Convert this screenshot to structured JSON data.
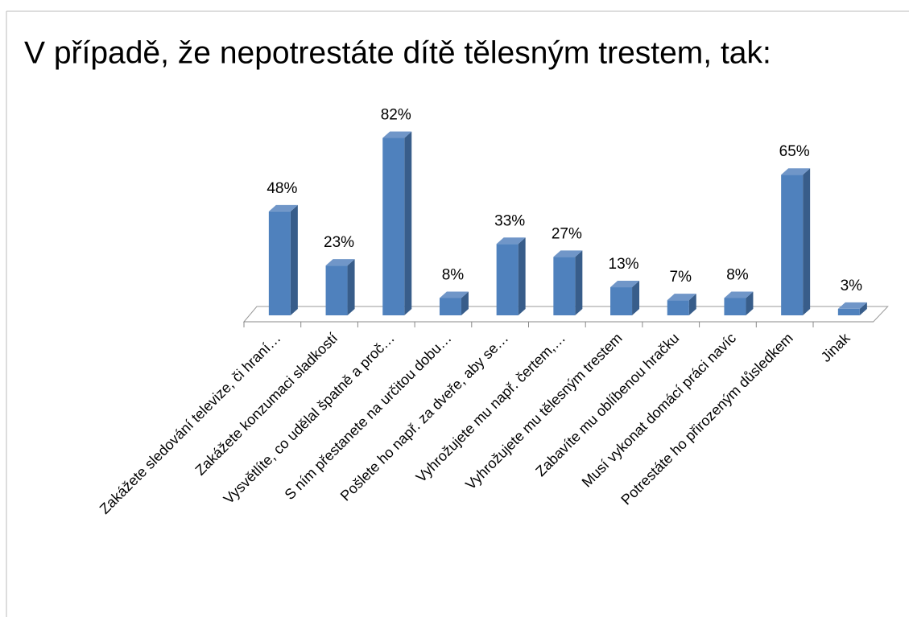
{
  "chart_data": {
    "type": "bar3d",
    "title": "V případě, že nepotrestáte dítě tělesným trestem, tak:",
    "categories": [
      "Zakážete sledování televize, či hraní…",
      "Zakážete konzumaci sladkostí",
      "Vysvětlíte, co udělal špatně a proč…",
      "S ním přestanete na určitou dobu…",
      "Pošlete ho např. za dveře, aby se…",
      "Vyhrožujete mu např. čertem,…",
      "Vyhrožujete mu tělesným trestem",
      "Zabavíte mu oblíbenou hračku",
      "Musí vykonat domácí práci navíc",
      "Potrestáte ho přirozeným důsledkem",
      "Jinak"
    ],
    "values": [
      48,
      23,
      82,
      8,
      33,
      27,
      13,
      7,
      8,
      65,
      3
    ],
    "value_labels": [
      "48%",
      "23%",
      "82%",
      "8%",
      "33%",
      "27%",
      "13%",
      "7%",
      "8%",
      "65%",
      "3%"
    ],
    "color": "#4f81bd",
    "ylim": [
      0,
      90
    ]
  }
}
